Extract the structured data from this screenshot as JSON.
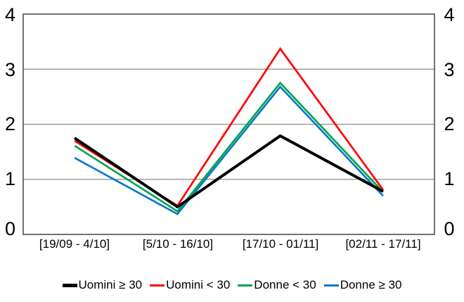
{
  "chart_data": {
    "type": "line",
    "title": "",
    "xlabel": "",
    "ylabel": "",
    "categories": [
      "[19/09 - 4/10]",
      "[5/10 - 16/10]",
      "[17/10 - 01/11]",
      "[02/11 - 17/11]"
    ],
    "series": [
      {
        "name": "Uomini ≥ 30",
        "color": "#000000",
        "thickness": 4,
        "values": [
          1.75,
          0.5,
          1.79,
          0.78
        ]
      },
      {
        "name": "Uomini < 30",
        "color": "#ff0000",
        "thickness": 2.7,
        "values": [
          1.7,
          0.52,
          3.37,
          0.81
        ]
      },
      {
        "name": "Donne < 30",
        "color": "#00a550",
        "thickness": 2.7,
        "values": [
          1.61,
          0.42,
          2.75,
          0.77
        ]
      },
      {
        "name": "Donne ≥ 30",
        "color": "#0b78c9",
        "thickness": 2.7,
        "values": [
          1.39,
          0.37,
          2.68,
          0.7
        ]
      }
    ],
    "y_ticks": [
      "0",
      "1",
      "2",
      "3",
      "4"
    ],
    "ylim": [
      0,
      4
    ],
    "grid": "horizontal",
    "gridline_color": "#8c8c8c",
    "border_color": "#444444",
    "legend_position": "bottom",
    "axes_mirrored": true
  }
}
